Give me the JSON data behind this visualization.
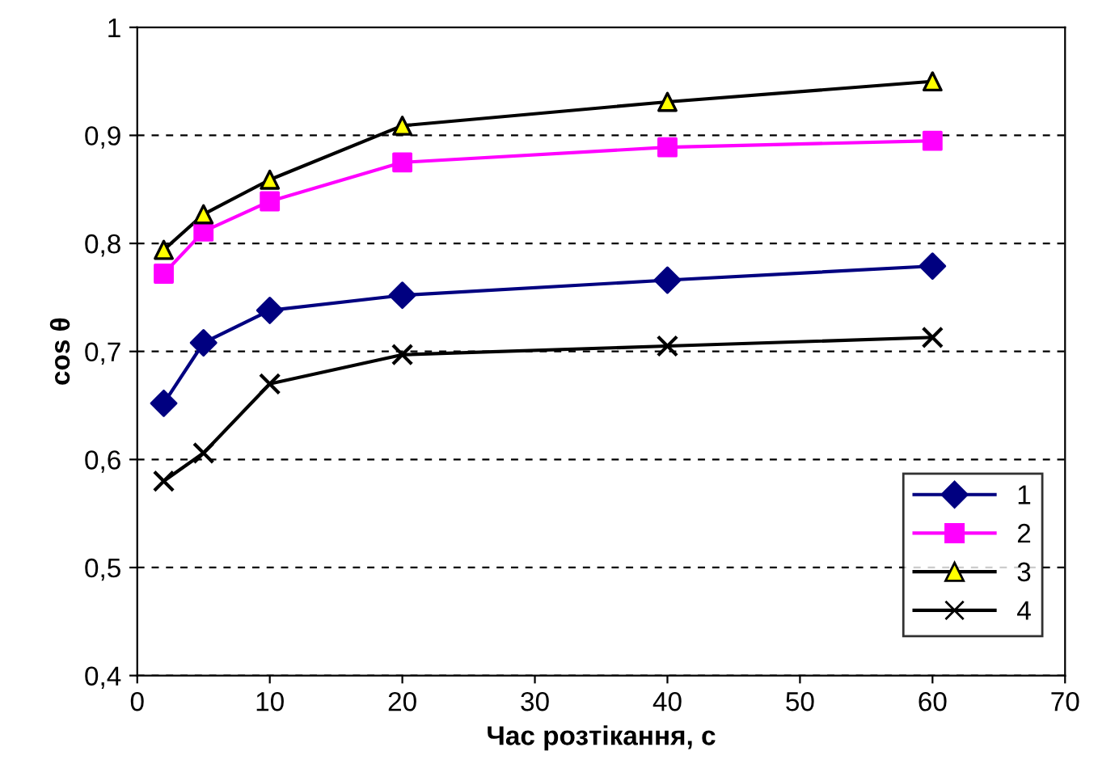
{
  "chart_data": {
    "type": "line",
    "xlabel": "Час розтікання, с",
    "ylabel": "cos θ",
    "x": [
      2,
      5,
      10,
      20,
      40,
      60
    ],
    "series": [
      {
        "name": "1",
        "color": "#000080",
        "marker": "diamond",
        "values": [
          0.652,
          0.708,
          0.738,
          0.752,
          0.766,
          0.779
        ]
      },
      {
        "name": "2",
        "color": "#ff00ff",
        "marker": "square",
        "values": [
          0.772,
          0.811,
          0.839,
          0.875,
          0.889,
          0.895
        ]
      },
      {
        "name": "3",
        "color": "#000000",
        "marker": "triangle",
        "colors": [
          "#ffff00",
          "#ffff00",
          "#ffff00",
          "#ffff00",
          "#ffff00",
          "#ffff00"
        ],
        "values": [
          0.794,
          0.827,
          0.859,
          0.909,
          0.931,
          0.95
        ]
      },
      {
        "name": "4",
        "color": "#000000",
        "marker": "cross",
        "values": [
          0.58,
          0.606,
          0.67,
          0.697,
          0.705,
          0.713
        ]
      }
    ],
    "xlim": [
      0,
      70
    ],
    "xticks": [
      0,
      10,
      20,
      30,
      40,
      50,
      60,
      70
    ],
    "ylim": [
      0.4,
      1
    ],
    "yticks": [
      {
        "value": 0.4,
        "label": "0,4"
      },
      {
        "value": 0.5,
        "label": "0,5"
      },
      {
        "value": 0.6,
        "label": "0,6"
      },
      {
        "value": 0.7,
        "label": "0,7"
      },
      {
        "value": 0.8,
        "label": "0,8"
      },
      {
        "value": 0.9,
        "label": "0,9"
      },
      {
        "value": 1,
        "label": "1"
      }
    ],
    "grid": "y",
    "legend": "bottom right"
  }
}
